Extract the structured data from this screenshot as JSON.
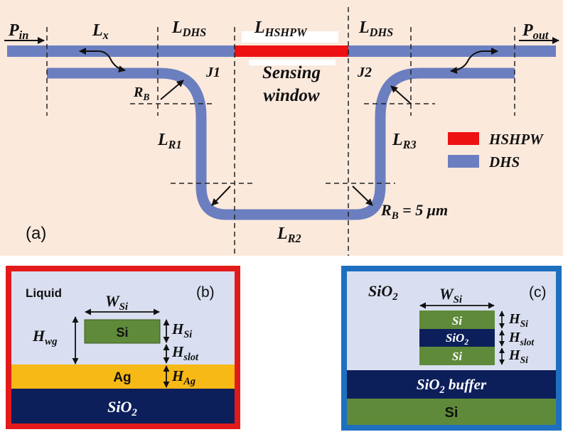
{
  "colors": {
    "background_a": "#fbe9dc",
    "waveguide_dhs": "#6b7fc0",
    "hshpw": "#ee1111",
    "liquid": "#d9dff0",
    "si": "#5e8a3a",
    "ag": "#f7b916",
    "sio2": "#0c1f5a",
    "frame_b": "#e31a1a",
    "frame_c": "#1e6fbf"
  },
  "panel_a": {
    "label": "(a)",
    "p_in": {
      "main": "P",
      "sub": "in"
    },
    "p_out": {
      "main": "P",
      "sub": "out"
    },
    "lx": {
      "main": "L",
      "sub": "x"
    },
    "ldhs_left": {
      "main": "L",
      "sub": "DHS"
    },
    "ldhs_right": {
      "main": "L",
      "sub": "DHS"
    },
    "lhshpw": {
      "main": "L",
      "sub": "HSHPW"
    },
    "j1": "J1",
    "j2": "J2",
    "sensing_line1": "Sensing",
    "sensing_line2": "window",
    "rb": {
      "main": "R",
      "sub": "B"
    },
    "rb_value": {
      "main": "R",
      "sub": "B",
      "rest": " = 5 μm"
    },
    "lr1": {
      "main": "L",
      "sub": "R1"
    },
    "lr2": {
      "main": "L",
      "sub": "R2"
    },
    "lr3": {
      "main": "L",
      "sub": "R3"
    },
    "legend": [
      {
        "label": "HSHPW",
        "color": "#ee1111"
      },
      {
        "label": "DHS",
        "color": "#6b7fc0"
      }
    ]
  },
  "panel_b": {
    "label": "(b)",
    "liquid": "Liquid",
    "wsi": {
      "main": "W",
      "sub": "Si"
    },
    "hwg": {
      "main": "H",
      "sub": "wg"
    },
    "hsi": {
      "main": "H",
      "sub": "Si"
    },
    "hslot": {
      "main": "H",
      "sub": "slot"
    },
    "hag": {
      "main": "H",
      "sub": "Ag"
    },
    "si": "Si",
    "ag": "Ag",
    "sio2": {
      "main": "SiO",
      "sub": "2"
    }
  },
  "panel_c": {
    "label": "(c)",
    "cladding": {
      "main": "SiO",
      "sub": "2"
    },
    "wsi": {
      "main": "W",
      "sub": "Si"
    },
    "si_top": "Si",
    "sio2_mid": {
      "main": "SiO",
      "sub": "2"
    },
    "si_bottom": "Si",
    "hsi_top": {
      "main": "H",
      "sub": "Si"
    },
    "hslot": {
      "main": "H",
      "sub": "slot"
    },
    "hsi_bottom": {
      "main": "H",
      "sub": "Si"
    },
    "buffer": {
      "main": "SiO",
      "sub": "2",
      "rest": " buffer"
    },
    "substrate": "Si"
  }
}
